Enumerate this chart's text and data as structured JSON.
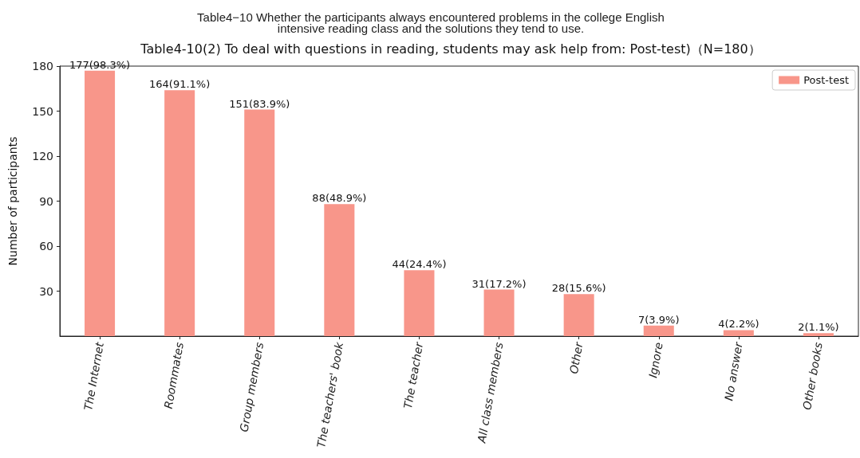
{
  "chart_data": {
    "type": "bar",
    "title": "Table4−10 Whether the participants always encountered problems in the college English\nintensive reading class and the solutions they tend to use.",
    "subtitle": "Table4-10(2) To deal with questions in reading, students may ask help from: Post-test)（N=180）",
    "ylabel": "Number of participants",
    "categories": [
      "The Internet",
      "Roommates",
      "Group members",
      "The teachers' book",
      "The teacher",
      "All class members",
      "Other",
      "Ignore",
      "No answer",
      "Other books"
    ],
    "series": [
      {
        "name": "Post-test",
        "color": "#f8968a",
        "values": [
          177,
          164,
          151,
          88,
          44,
          31,
          28,
          7,
          4,
          2
        ],
        "value_labels": [
          "177(98.3%)",
          "164(91.1%)",
          "151(83.9%)",
          "88(48.9%)",
          "44(24.4%)",
          "31(17.2%)",
          "28(15.6%)",
          "7(3.9%)",
          "4(2.2%)",
          "2(1.1%)"
        ]
      }
    ],
    "ylim": [
      0,
      180
    ],
    "yticks": [
      30,
      60,
      90,
      120,
      150,
      180
    ],
    "grid": false,
    "legend": "top right"
  }
}
